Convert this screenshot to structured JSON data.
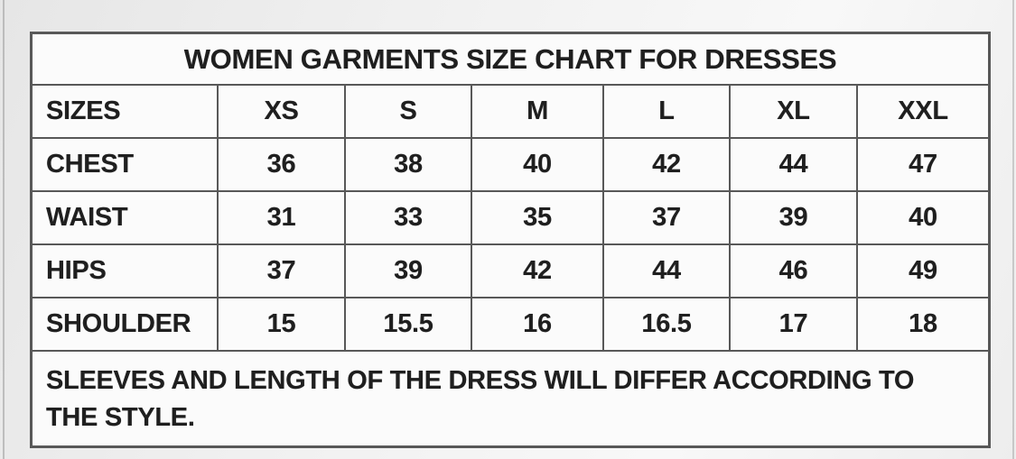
{
  "colors": {
    "page_background": "#efefef",
    "table_background": "#fbfbfb",
    "border": "#585858",
    "text": "#1f1f1f"
  },
  "table": {
    "title": "WOMEN GARMENTS SIZE CHART FOR DRESSES",
    "header": [
      "SIZES",
      "XS",
      "S",
      "M",
      "L",
      "XL",
      "XXL"
    ],
    "rows": [
      {
        "label": "CHEST",
        "values": [
          "36",
          "38",
          "40",
          "42",
          "44",
          "47"
        ]
      },
      {
        "label": "WAIST",
        "values": [
          "31",
          "33",
          "35",
          "37",
          "39",
          "40"
        ]
      },
      {
        "label": "HIPS",
        "values": [
          "37",
          "39",
          "42",
          "44",
          "46",
          "49"
        ]
      },
      {
        "label": "SHOULDER",
        "values": [
          "15",
          "15.5",
          "16",
          "16.5",
          "17",
          "18"
        ]
      }
    ],
    "note": "SLEEVES AND LENGTH OF THE DRESS WILL DIFFER ACCORDING TO\nTHE STYLE."
  },
  "chart_data": {
    "type": "table",
    "title": "WOMEN GARMENTS SIZE CHART FOR DRESSES",
    "columns": [
      "SIZES",
      "XS",
      "S",
      "M",
      "L",
      "XL",
      "XXL"
    ],
    "rows": [
      [
        "CHEST",
        36,
        38,
        40,
        42,
        44,
        47
      ],
      [
        "WAIST",
        31,
        33,
        35,
        37,
        39,
        40
      ],
      [
        "HIPS",
        37,
        39,
        42,
        44,
        46,
        49
      ],
      [
        "SHOULDER",
        15,
        15.5,
        16,
        16.5,
        17,
        18
      ]
    ],
    "footnote": "SLEEVES AND LENGTH OF THE DRESS WILL DIFFER ACCORDING TO THE STYLE."
  }
}
